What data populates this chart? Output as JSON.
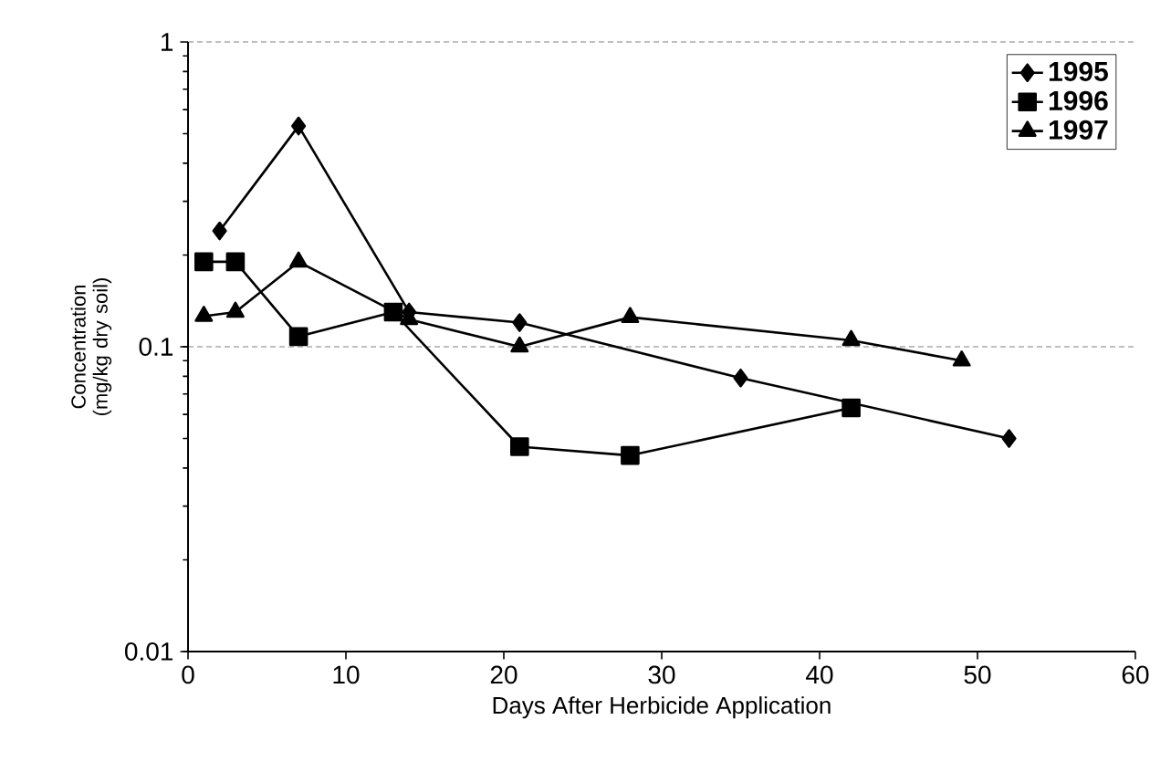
{
  "chart_data": {
    "type": "line",
    "xlabel": "Days After Herbicide Application",
    "ylabel": "Concentration (mg/kg dry soil)",
    "log": "y",
    "xlim": [
      0,
      60
    ],
    "xticks": [
      0,
      10,
      20,
      30,
      40,
      50,
      60
    ],
    "ylim": [
      0.01,
      1
    ],
    "yticks": [
      0.01,
      0.1,
      1
    ],
    "grid": "y",
    "legend": "top right",
    "line_style": "solid",
    "series": [
      {
        "name": "1995",
        "color": "#000000",
        "marker": "diamond",
        "x": [
          2,
          7,
          14,
          21,
          35,
          52
        ],
        "values": [
          0.24,
          0.53,
          0.13,
          0.12,
          0.079,
          0.05
        ]
      },
      {
        "name": "1996",
        "color": "#000000",
        "marker": "square",
        "x": [
          1,
          3,
          7,
          13,
          21,
          28,
          42
        ],
        "values": [
          0.19,
          0.19,
          0.108,
          0.13,
          0.047,
          0.044,
          0.063
        ]
      },
      {
        "name": "1997",
        "color": "#000000",
        "marker": "triangle",
        "x": [
          1,
          3,
          7,
          14,
          21,
          28,
          42,
          49
        ],
        "values": [
          0.126,
          0.13,
          0.19,
          0.123,
          0.1,
          0.125,
          0.105,
          0.09
        ]
      }
    ]
  }
}
